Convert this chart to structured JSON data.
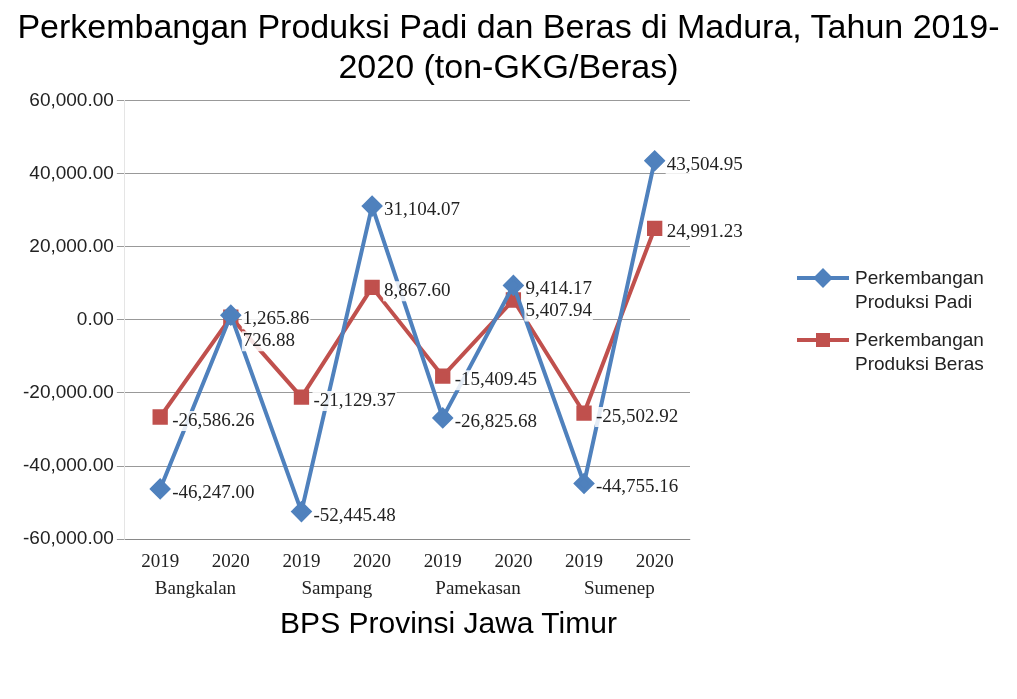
{
  "chart_data": {
    "type": "line",
    "title": "Perkembangan Produksi Padi dan Beras di Madura, Tahun 2019-2020 (ton-GKG/Beras)",
    "categories": [
      "2019",
      "2020",
      "2019",
      "2020",
      "2019",
      "2020",
      "2019",
      "2020"
    ],
    "series": [
      {
        "name": "Perkembangan Produksi Padi",
        "color": "#4f81bd",
        "marker": "diamond",
        "values": [
          -46247.0,
          1265.86,
          -52445.48,
          31104.07,
          -26825.68,
          9414.17,
          -44755.16,
          43504.95
        ],
        "value_labels": [
          "-46,247.00",
          "1,265.86",
          "-52,445.48",
          "31,104.07",
          "-26,825.68",
          "9,414.17",
          "-44,755.16",
          "43,504.95"
        ]
      },
      {
        "name": "Perkembangan Produksi Beras",
        "color": "#c0504d",
        "marker": "square",
        "values": [
          -26586.26,
          726.88,
          -21129.37,
          8867.6,
          -15409.45,
          5407.94,
          -25502.92,
          24991.23
        ],
        "value_labels": [
          "-26,586.26",
          "726.88",
          "-21,129.37",
          "8,867.60",
          "-15,409.45",
          "5,407.94",
          "-25,502.92",
          "24,991.23"
        ]
      }
    ],
    "ylim": [
      -60000,
      60000
    ],
    "yticks": [
      {
        "value": -60000,
        "label": "-60,000.00"
      },
      {
        "value": -40000,
        "label": "-40,000.00"
      },
      {
        "value": -20000,
        "label": "-20,000.00"
      },
      {
        "value": 0,
        "label": "0.00"
      },
      {
        "value": 20000,
        "label": "20,000.00"
      },
      {
        "value": 40000,
        "label": "40,000.00"
      },
      {
        "value": 60000,
        "label": "60,000.00"
      }
    ],
    "grid": "y",
    "legend": "right",
    "annotations": [
      "Bangkalan",
      "Sampang",
      "Pamekasan",
      "Sumenep",
      "BPS Provinsi Jawa Timur"
    ]
  }
}
